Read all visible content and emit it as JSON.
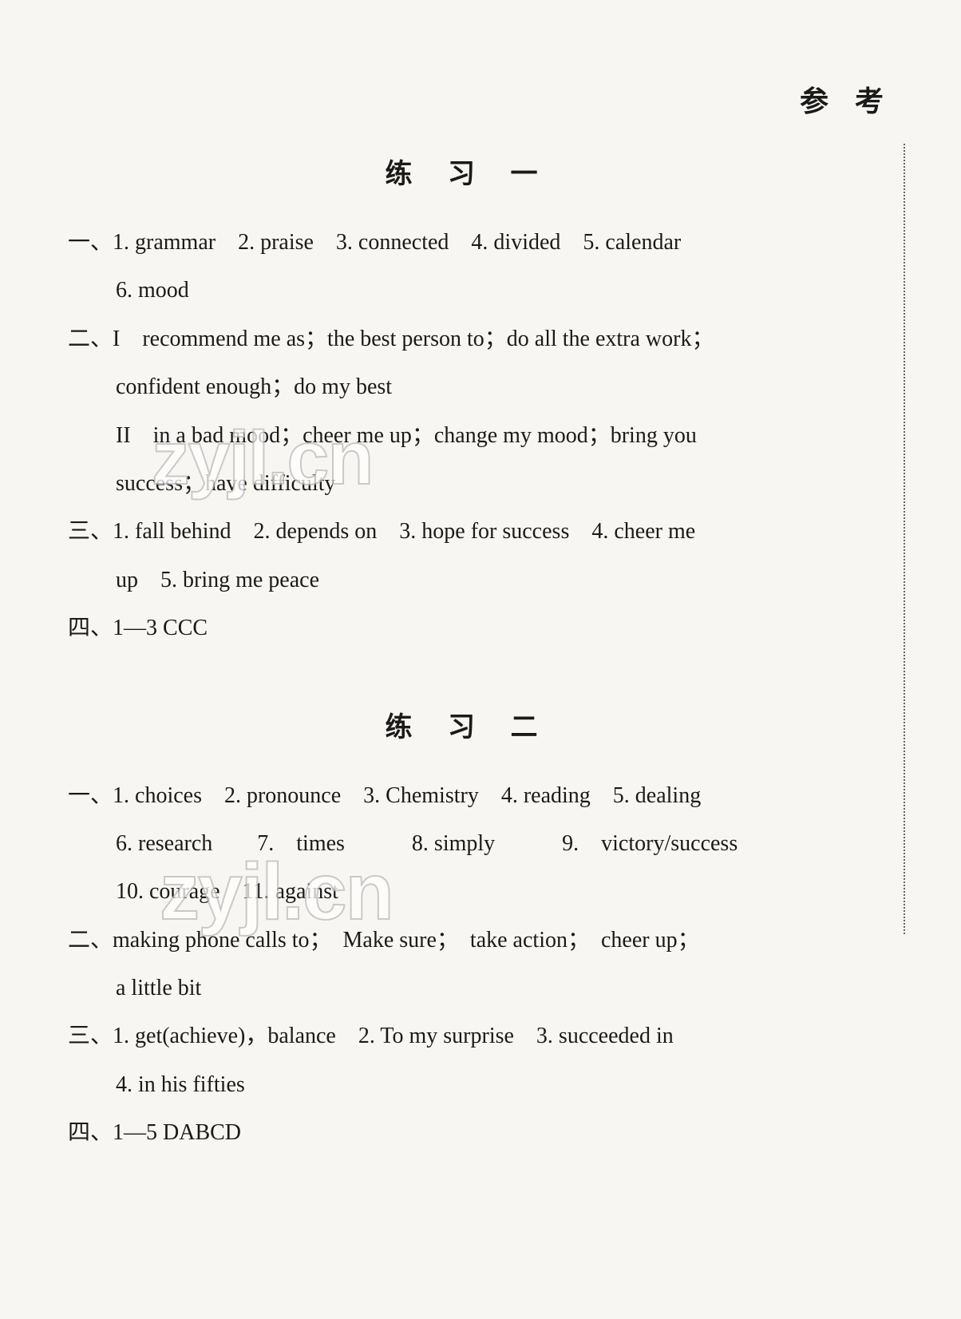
{
  "header": {
    "title": "参 考"
  },
  "watermarks": {
    "wm1": "zyjl.cn",
    "wm2": "zyjl.cn"
  },
  "exercise1": {
    "title": "练 习 一",
    "q1_label": "一、",
    "q1_line1": "1. grammar　2. praise　3. connected　4. divided　5. calendar",
    "q1_line2": "6. mood",
    "q2_label": "二、",
    "q2_line1": "I　recommend me as；the best person to；do all the extra work；",
    "q2_line2": "confident enough；do my best",
    "q2_line3": "II　in a bad mood；cheer me up；change my mood；bring you",
    "q2_line4": "success；have difficulty",
    "q3_label": "三、",
    "q3_line1": "1. fall behind　2. depends on　3. hope for success　4. cheer me",
    "q3_line2": "up　5. bring me peace",
    "q4_label": "四、",
    "q4_line1": "1—3 CCC"
  },
  "exercise2": {
    "title": "练 习 二",
    "q1_label": "一、",
    "q1_line1": "1. choices　2. pronounce　3. Chemistry　4. reading　5. dealing",
    "q1_line2": "6. research　　7.　times　　　8. simply　　　9.　victory/success",
    "q1_line3": "10. courage　11. against",
    "q2_label": "二、",
    "q2_line1": "making phone calls to；　Make sure；　take action；　cheer up；",
    "q2_line2": "a little bit",
    "q3_label": "三、",
    "q3_line1": "1. get(achieve)，balance　2. To my surprise　3. succeeded in",
    "q3_line2": "4. in his fifties",
    "q4_label": "四、",
    "q4_line1": "1—5 DABCD"
  }
}
